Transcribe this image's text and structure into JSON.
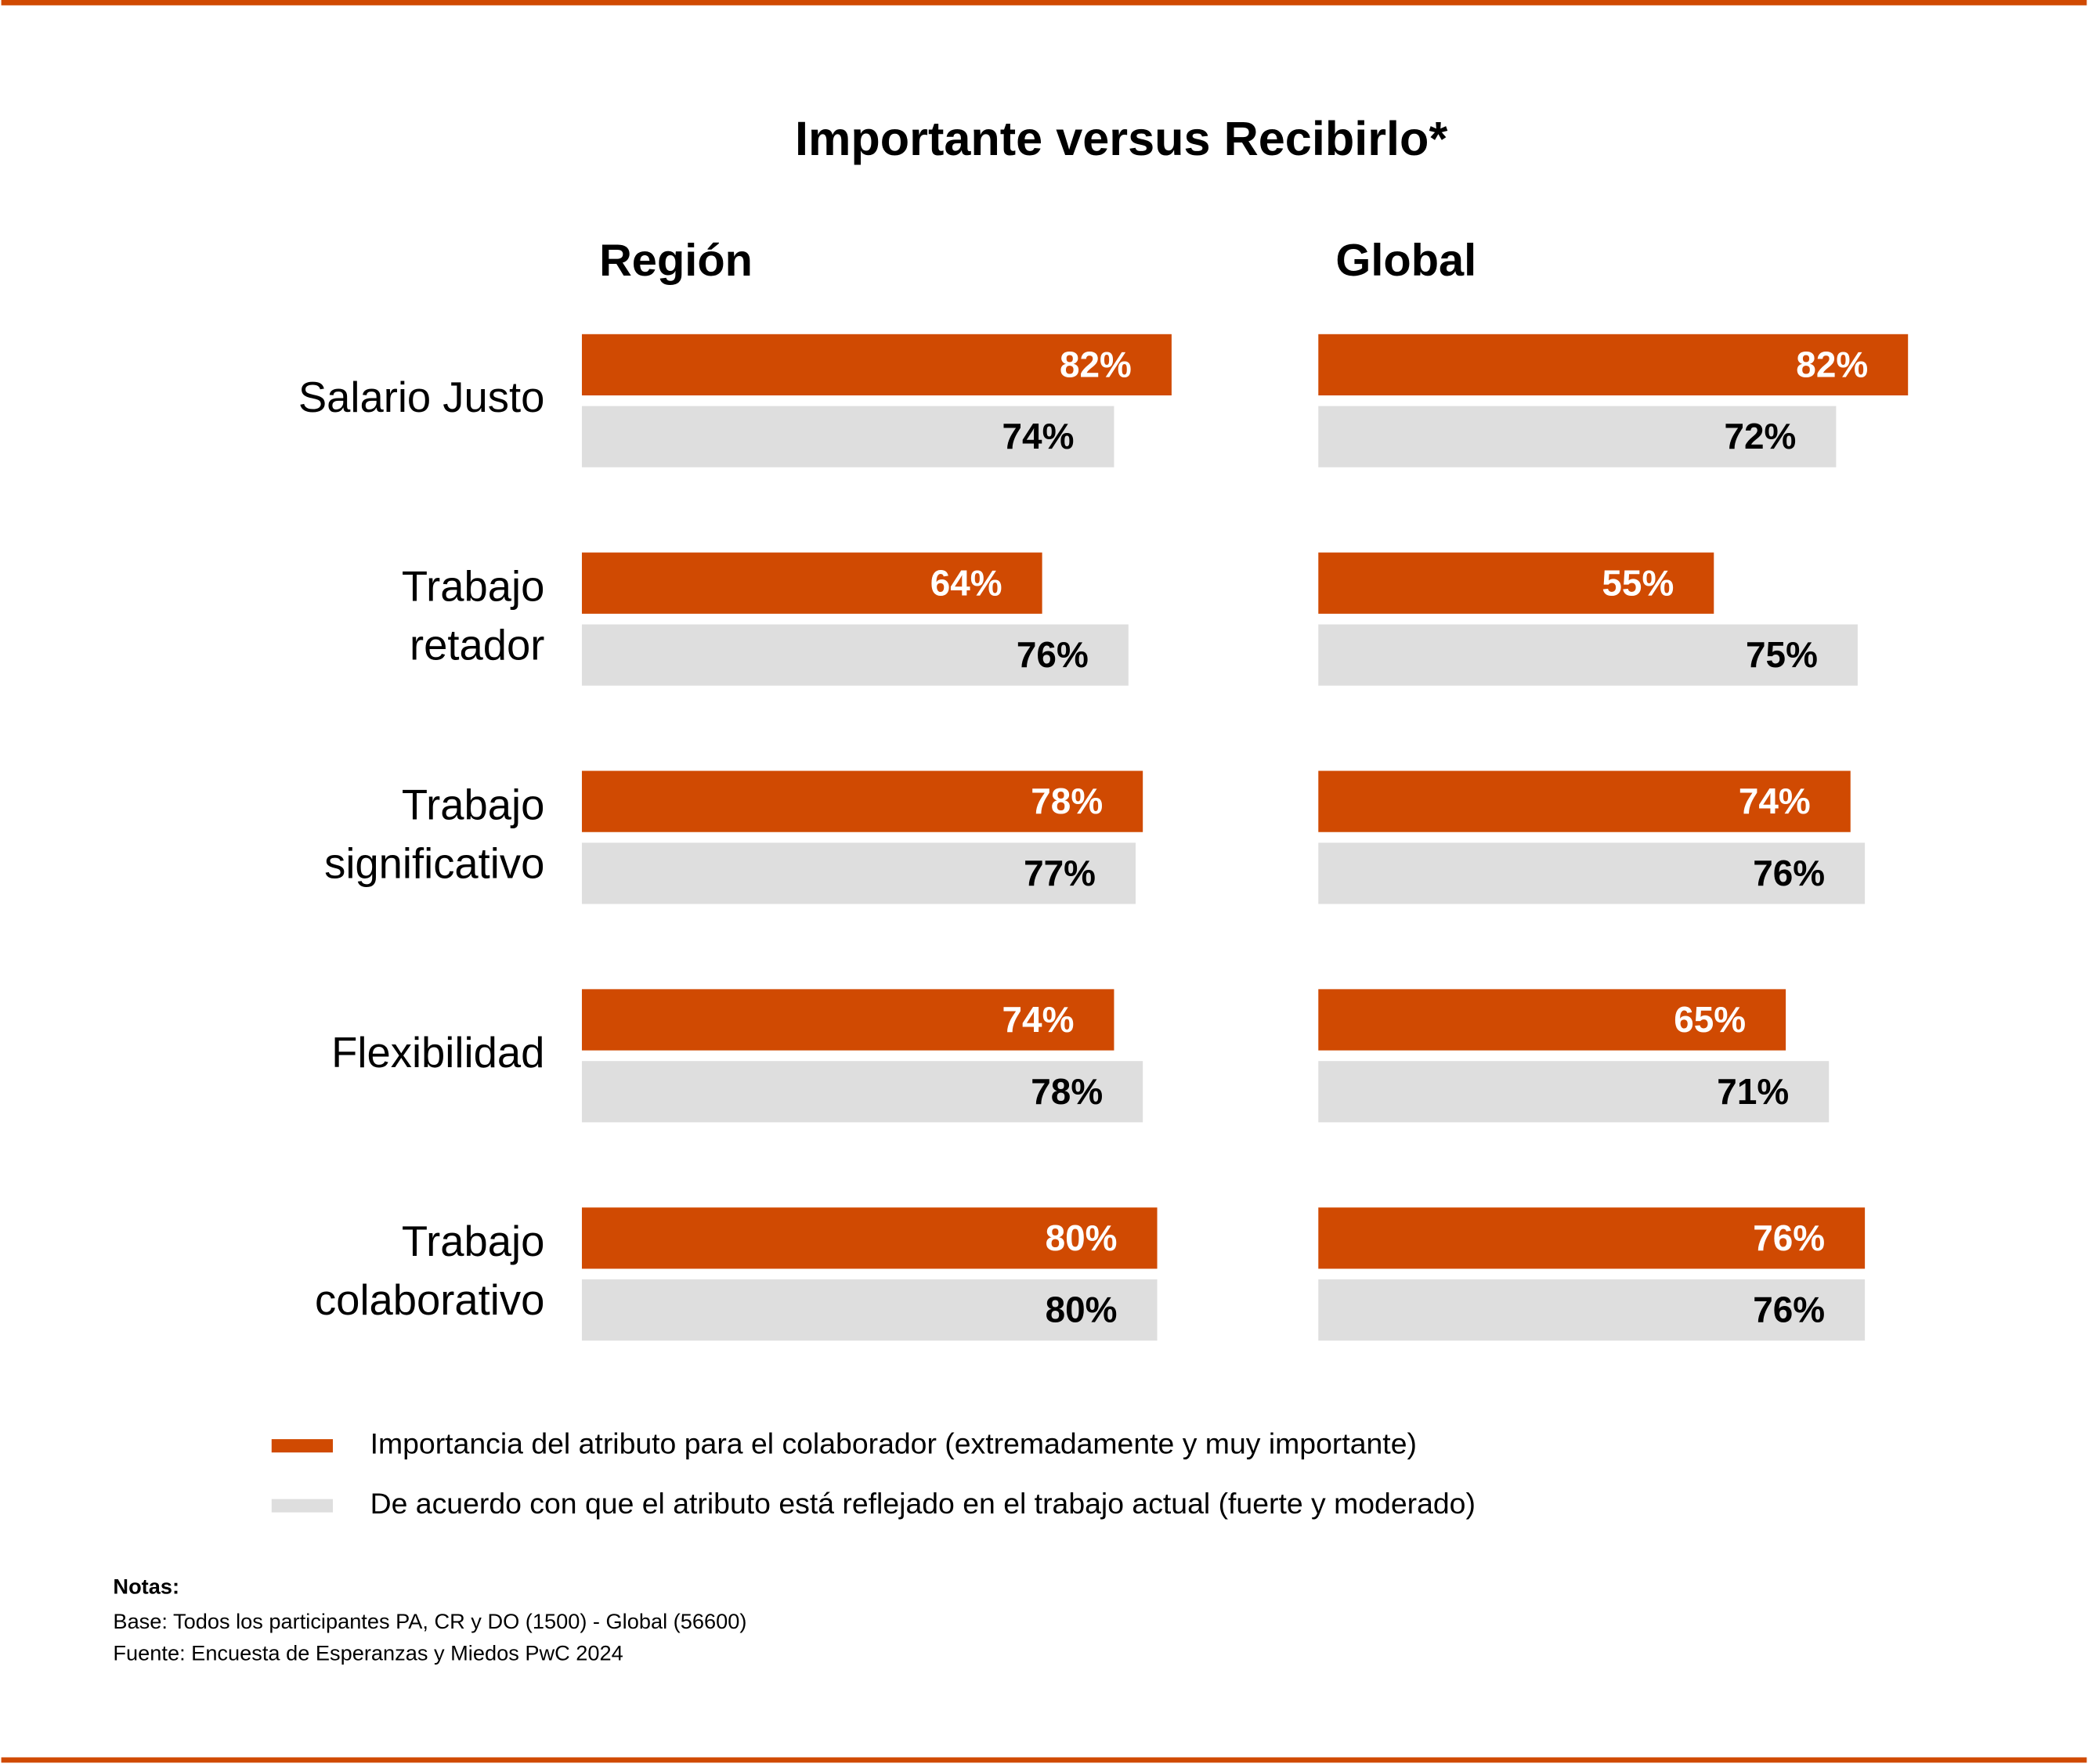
{
  "title": "Importante versus Recibirlo*",
  "chart_data": [
    {
      "type": "bar",
      "orientation": "horizontal",
      "title": "Región",
      "categories": [
        [
          "Salario Justo"
        ],
        [
          "Trabajo",
          "retador"
        ],
        [
          "Trabajo",
          "significativo"
        ],
        [
          "Flexibilidad"
        ],
        [
          "Trabajo",
          "colaborativo"
        ]
      ],
      "xlim": [
        0,
        100
      ],
      "series": [
        {
          "name": "Importancia del atributo para el colaborador (extremadamente y muy importante)",
          "color": "#d04a02",
          "values": [
            82,
            64,
            78,
            74,
            80
          ],
          "value_labels": [
            "82%",
            "64%",
            "78%",
            "74%",
            "80%"
          ]
        },
        {
          "name": "De acuerdo con que el atributo está reflejado en el trabajo actual (fuerte y moderado)",
          "color": "#dedede",
          "values": [
            74,
            76,
            77,
            78,
            80
          ],
          "value_labels": [
            "74%",
            "76%",
            "77%",
            "78%",
            "80%"
          ]
        }
      ]
    },
    {
      "type": "bar",
      "orientation": "horizontal",
      "title": "Global",
      "xlim": [
        0,
        100
      ],
      "series": [
        {
          "color": "#d04a02",
          "values": [
            82,
            55,
            74,
            65,
            76
          ],
          "value_labels": [
            "82%",
            "55%",
            "74%",
            "65%",
            "76%"
          ]
        },
        {
          "color": "#dedede",
          "values": [
            72,
            75,
            76,
            71,
            76
          ],
          "value_labels": [
            "72%",
            "75%",
            "76%",
            "71%",
            "76%"
          ]
        }
      ]
    }
  ],
  "notes": {
    "heading": "Notas:",
    "lines": [
      "Base: Todos los participantes PA, CR y DO (1500) - Global (56600)",
      "Fuente: Encuesta de Esperanzas y Miedos PwC 2024"
    ]
  }
}
